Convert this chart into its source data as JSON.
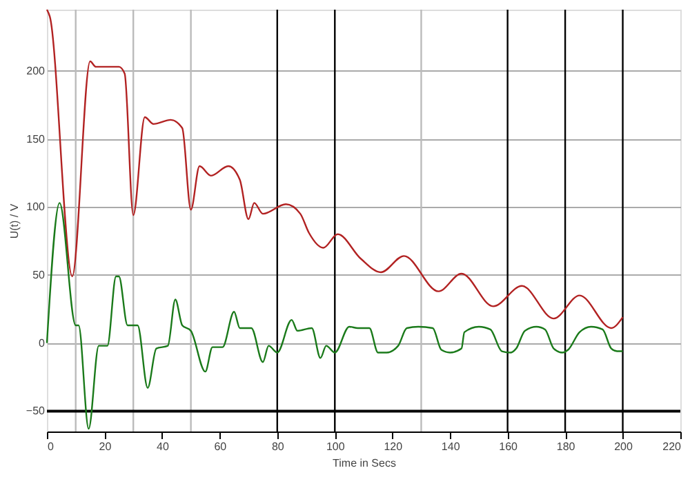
{
  "chart_data": {
    "type": "line",
    "xlabel": "Time in Secs",
    "ylabel": "U(t) / V",
    "xlim": [
      0,
      220
    ],
    "xticks": [
      0,
      20,
      40,
      60,
      80,
      100,
      120,
      140,
      160,
      180,
      200,
      220
    ],
    "ylim": [
      -65,
      245
    ],
    "yticks": [
      -50,
      0,
      50,
      100,
      150,
      200
    ],
    "grid": "y",
    "line_style": "solid",
    "marker": "none",
    "ref_lines": [
      {
        "axis": "x",
        "value": 10,
        "color": "#bbbbbb"
      },
      {
        "axis": "x",
        "value": 30,
        "color": "#bbbbbb"
      },
      {
        "axis": "x",
        "value": 50,
        "color": "#bbbbbb"
      },
      {
        "axis": "x",
        "value": 130,
        "color": "#bbbbbb"
      },
      {
        "axis": "x",
        "value": 80,
        "color": "#000000"
      },
      {
        "axis": "x",
        "value": 100,
        "color": "#000000"
      },
      {
        "axis": "x",
        "value": 160,
        "color": "#000000"
      },
      {
        "axis": "x",
        "value": 180,
        "color": "#000000"
      },
      {
        "axis": "x",
        "value": 200,
        "color": "#000000"
      },
      {
        "axis": "y",
        "value": -50,
        "color": "#000000"
      }
    ],
    "series": [
      {
        "color": "#b22222",
        "x": [
          0,
          1,
          8.8,
          15,
          17,
          25,
          27,
          30,
          34,
          37,
          43,
          47,
          50,
          53,
          57,
          63,
          67,
          70,
          72,
          75,
          83,
          88,
          91,
          96,
          101,
          109,
          116,
          124,
          136,
          144,
          155,
          165,
          176,
          185,
          196,
          200
        ],
        "values": [
          245,
          240,
          49,
          207,
          203,
          203,
          198,
          94,
          166,
          161,
          164,
          158,
          98,
          130,
          123,
          130,
          120,
          91,
          103,
          95,
          102,
          95,
          81,
          70,
          80,
          62,
          52,
          64,
          38,
          51,
          27,
          42,
          18,
          35,
          11,
          19
        ]
      },
      {
        "color": "#1a7a1a",
        "x": [
          0,
          4.4,
          10,
          11,
          14.5,
          18,
          21,
          24,
          25,
          28,
          31.5,
          35,
          38,
          42,
          44.6,
          47,
          50,
          55,
          57.5,
          61,
          65,
          67,
          71,
          75,
          77,
          80,
          85,
          87,
          92,
          95,
          97,
          100,
          105,
          108,
          112,
          115,
          118,
          122,
          125,
          129,
          134,
          137,
          140,
          144,
          145,
          150,
          154,
          158,
          161,
          163,
          166,
          170,
          173,
          176,
          179,
          181,
          185,
          189,
          193,
          196,
          198,
          200
        ],
        "values": [
          0,
          103,
          13,
          13,
          -63,
          -2,
          -2,
          49,
          49,
          13,
          13,
          -33,
          -4,
          -2,
          32,
          13,
          9,
          -21,
          -3,
          -3,
          23,
          11,
          11,
          -14,
          -2,
          -7,
          17,
          9,
          11,
          -11,
          -2,
          -7,
          12,
          11,
          11,
          -7,
          -7,
          -2,
          11,
          12,
          11,
          -5,
          -7,
          -4,
          8,
          12,
          10,
          -6,
          -7,
          -4,
          9,
          12,
          10,
          -4,
          -7,
          -5,
          8,
          12,
          10,
          -4,
          -6,
          -6
        ]
      }
    ]
  }
}
